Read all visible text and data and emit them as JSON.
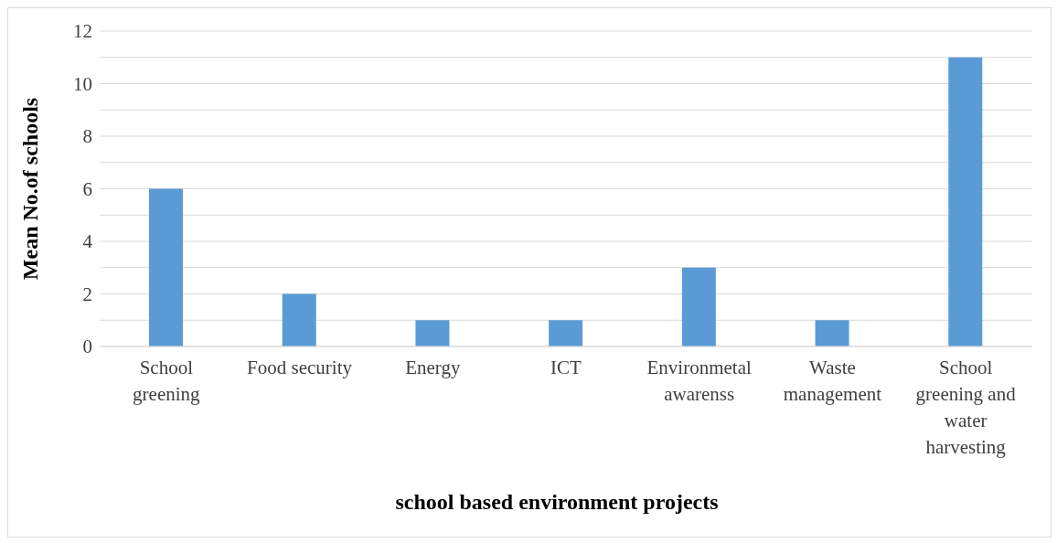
{
  "chart_data": {
    "type": "bar",
    "xlabel": "school based environment projects",
    "ylabel": "Mean No.of schools",
    "categories": [
      "School greening",
      "Food security",
      "Energy",
      "ICT",
      "Environmetal awarenss",
      "Waste management",
      "School greening and water harvesting"
    ],
    "values": [
      6,
      2,
      1,
      1,
      3,
      1,
      11
    ],
    "color": "#5b9bd5",
    "ylim": [
      0,
      12
    ],
    "yticks": [
      0,
      {
        "value": 1,
        "label": null
      },
      2,
      {
        "value": 3,
        "label": null
      },
      4,
      {
        "value": 5,
        "label": null
      },
      6,
      {
        "value": 7,
        "label": null
      },
      8,
      {
        "value": 9,
        "label": null
      },
      10,
      {
        "value": 11,
        "label": null
      },
      12
    ],
    "grid": "y"
  }
}
